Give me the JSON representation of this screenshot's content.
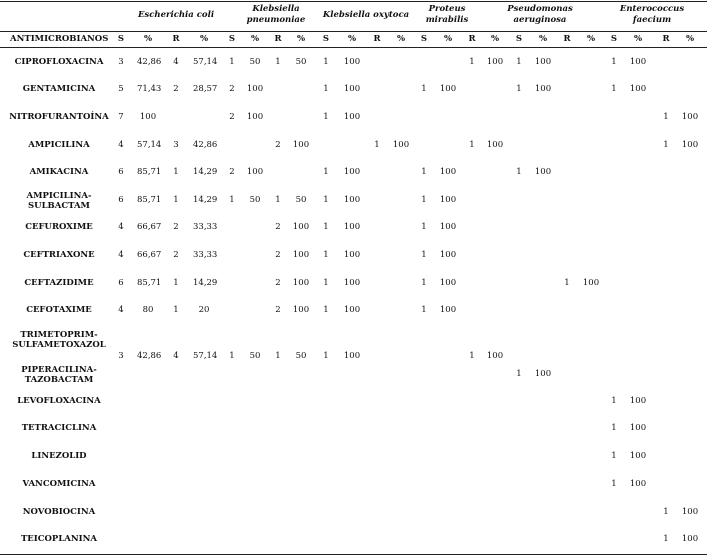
{
  "table": {
    "organisms": [
      "Escherichia coli",
      "Klebsiella pneumoniae",
      "Klebsiella oxytoca",
      "Proteus mirabilis",
      "Pseudomonas aeruginosa",
      "Enterococcus faecium"
    ],
    "first_header": "ANTIMICROBIANOS",
    "subheaders": [
      "S",
      "%",
      "R",
      "%",
      "S",
      "%",
      "R",
      "%",
      "S",
      "%",
      "R",
      "%",
      "S",
      "%",
      "R",
      "%",
      "S",
      "%",
      "R",
      "%",
      "S",
      "%",
      "R",
      "%"
    ],
    "rows": [
      {
        "label": "CIPROFLOXACINA",
        "cells": [
          "3",
          "42,86",
          "4",
          "57,14",
          "1",
          "50",
          "1",
          "50",
          "1",
          "100",
          "",
          "",
          "",
          "",
          "1",
          "100",
          "1",
          "100",
          "",
          "",
          "1",
          "100",
          "",
          ""
        ]
      },
      {
        "label": "GENTAMICINA",
        "cells": [
          "5",
          "71,43",
          "2",
          "28,57",
          "2",
          "100",
          "",
          "",
          "1",
          "100",
          "",
          "",
          "1",
          "100",
          "",
          "",
          "1",
          "100",
          "",
          "",
          "1",
          "100",
          "",
          ""
        ]
      },
      {
        "label": "NITROFURANTOÍNA",
        "cells": [
          "7",
          "100",
          "",
          "",
          "2",
          "100",
          "",
          "",
          "1",
          "100",
          "",
          "",
          "",
          "",
          "",
          "",
          "",
          "",
          "",
          "",
          "",
          "",
          "1",
          "100"
        ]
      },
      {
        "label": "AMPICILINA",
        "cells": [
          "4",
          "57,14",
          "3",
          "42,86",
          "",
          "",
          "2",
          "100",
          "",
          "",
          "1",
          "100",
          "",
          "",
          "1",
          "100",
          "",
          "",
          "",
          "",
          "",
          "",
          "1",
          "100"
        ]
      },
      {
        "label": "AMIKACINA",
        "cells": [
          "6",
          "85,71",
          "1",
          "14,29",
          "2",
          "100",
          "",
          "",
          "1",
          "100",
          "",
          "",
          "1",
          "100",
          "",
          "",
          "1",
          "100",
          "",
          "",
          "",
          "",
          "",
          ""
        ]
      },
      {
        "label": "AMPICILINA-SULBACTAM",
        "cells": [
          "6",
          "85,71",
          "1",
          "14,29",
          "1",
          "50",
          "1",
          "50",
          "1",
          "100",
          "",
          "",
          "1",
          "100",
          "",
          "",
          "",
          "",
          "",
          "",
          "",
          "",
          "",
          ""
        ]
      },
      {
        "label": "CEFUROXIME",
        "cells": [
          "4",
          "66,67",
          "2",
          "33,33",
          "",
          "",
          "2",
          "100",
          "1",
          "100",
          "",
          "",
          "1",
          "100",
          "",
          "",
          "",
          "",
          "",
          "",
          "",
          "",
          "",
          ""
        ]
      },
      {
        "label": "CEFTRIAXONE",
        "cells": [
          "4",
          "66,67",
          "2",
          "33,33",
          "",
          "",
          "2",
          "100",
          "1",
          "100",
          "",
          "",
          "1",
          "100",
          "",
          "",
          "",
          "",
          "",
          "",
          "",
          "",
          "",
          ""
        ]
      },
      {
        "label": "CEFTAZIDIME",
        "cells": [
          "6",
          "85,71",
          "1",
          "14,29",
          "",
          "",
          "2",
          "100",
          "1",
          "100",
          "",
          "",
          "1",
          "100",
          "",
          "",
          "",
          "",
          "1",
          "100",
          "",
          "",
          "",
          ""
        ]
      },
      {
        "label": "CEFOTAXIME",
        "cells": [
          "4",
          "80",
          "1",
          "20",
          "",
          "",
          "2",
          "100",
          "1",
          "100",
          "",
          "",
          "1",
          "100",
          "",
          "",
          "",
          "",
          "",
          "",
          "",
          "",
          "",
          ""
        ]
      },
      {
        "label": "TRIMETOPRIM-SULFAMETOXAZOL",
        "cells": [
          "",
          "",
          "",
          "",
          "",
          "",
          "",
          "",
          "",
          "",
          "",
          "",
          "",
          "",
          "",
          "",
          "",
          "",
          "",
          "",
          "",
          "",
          "",
          ""
        ]
      },
      {
        "label": "PIPERACILINA-TAZOBACTAM",
        "cells": [
          "",
          "",
          "",
          "",
          "",
          "",
          "",
          "",
          "",
          "",
          "",
          "",
          "",
          "",
          "",
          "",
          "1",
          "100",
          "",
          "",
          "",
          "",
          "",
          ""
        ]
      },
      {
        "label": "LEVOFLOXACINA",
        "cells": [
          "",
          "",
          "",
          "",
          "",
          "",
          "",
          "",
          "",
          "",
          "",
          "",
          "",
          "",
          "",
          "",
          "",
          "",
          "",
          "",
          "1",
          "100",
          "",
          ""
        ]
      },
      {
        "label": "TETRACICLINA",
        "cells": [
          "",
          "",
          "",
          "",
          "",
          "",
          "",
          "",
          "",
          "",
          "",
          "",
          "",
          "",
          "",
          "",
          "",
          "",
          "",
          "",
          "1",
          "100",
          "",
          ""
        ]
      },
      {
        "label": "LINEZOLID",
        "cells": [
          "",
          "",
          "",
          "",
          "",
          "",
          "",
          "",
          "",
          "",
          "",
          "",
          "",
          "",
          "",
          "",
          "",
          "",
          "",
          "",
          "1",
          "100",
          "",
          ""
        ]
      },
      {
        "label": "VANCOMICINA",
        "cells": [
          "",
          "",
          "",
          "",
          "",
          "",
          "",
          "",
          "",
          "",
          "",
          "",
          "",
          "",
          "",
          "",
          "",
          "",
          "",
          "",
          "1",
          "100",
          "",
          ""
        ]
      },
      {
        "label": "NOVOBIOCINA",
        "cells": [
          "",
          "",
          "",
          "",
          "",
          "",
          "",
          "",
          "",
          "",
          "",
          "",
          "",
          "",
          "",
          "",
          "",
          "",
          "",
          "",
          "",
          "",
          "1",
          "100"
        ]
      },
      {
        "label": "TEICOPLANINA",
        "cells": [
          "",
          "",
          "",
          "",
          "",
          "",
          "",
          "",
          "",
          "",
          "",
          "",
          "",
          "",
          "",
          "",
          "",
          "",
          "",
          "",
          "",
          "",
          "1",
          "100"
        ]
      }
    ],
    "shared_row": {
      "label_note": "values printed between TRIMETOPRIM-SULFAMETOXAZOL and PIPERACILINA-TAZOBACTAM",
      "cells": [
        "3",
        "42,86",
        "4",
        "57,14",
        "1",
        "50",
        "1",
        "50",
        "1",
        "100",
        "",
        "",
        "",
        "",
        "1",
        "100",
        "",
        "",
        "",
        "",
        "",
        "",
        "",
        ""
      ]
    }
  }
}
